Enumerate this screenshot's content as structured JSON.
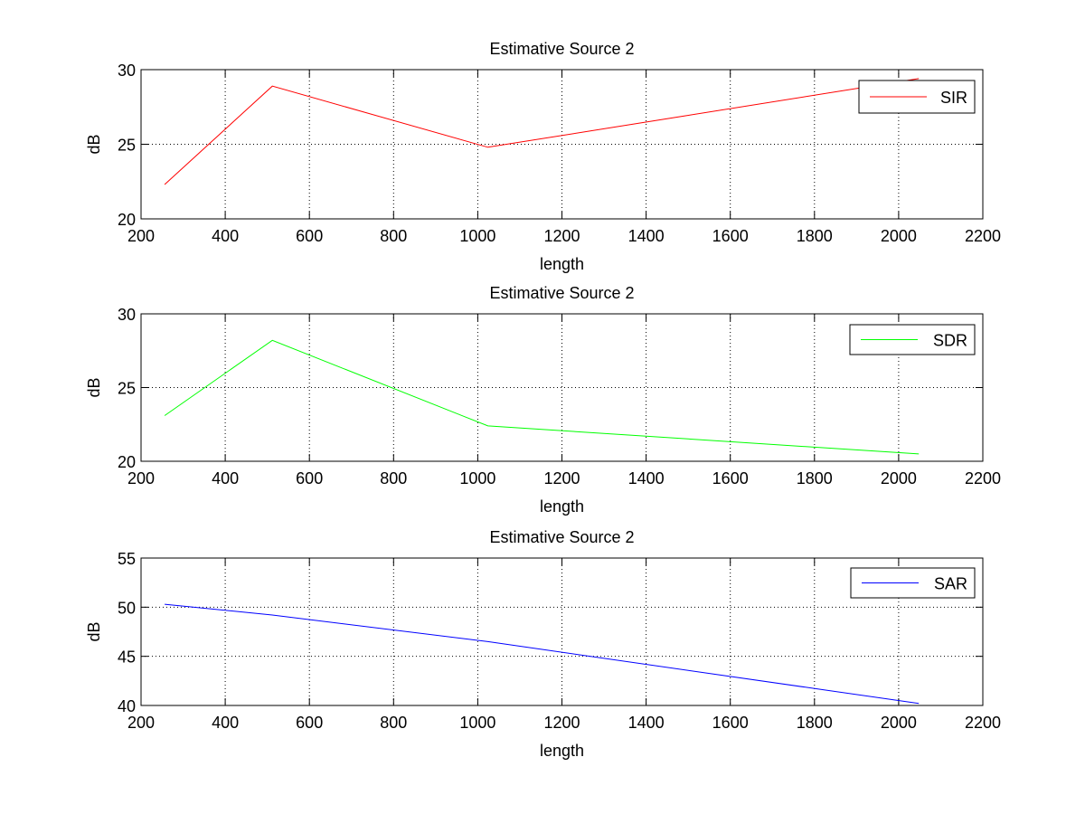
{
  "figure": {
    "background": "#ffffff"
  },
  "chart_data": [
    {
      "type": "line",
      "title": "Estimative Source 2",
      "xlabel": "length",
      "ylabel": "dB",
      "xlim": [
        200,
        2200
      ],
      "ylim": [
        20,
        30
      ],
      "xticks": [
        200,
        400,
        600,
        800,
        1000,
        1200,
        1400,
        1600,
        1800,
        2000,
        2200
      ],
      "yticks": [
        20,
        25,
        30
      ],
      "grid": true,
      "legend_position": "top-right",
      "series": [
        {
          "name": "SIR",
          "color": "#ff0000",
          "x": [
            256,
            512,
            1024,
            2048
          ],
          "y": [
            22.3,
            28.9,
            24.8,
            29.4
          ]
        }
      ]
    },
    {
      "type": "line",
      "title": "Estimative Source 2",
      "xlabel": "length",
      "ylabel": "dB",
      "xlim": [
        200,
        2200
      ],
      "ylim": [
        20,
        30
      ],
      "xticks": [
        200,
        400,
        600,
        800,
        1000,
        1200,
        1400,
        1600,
        1800,
        2000,
        2200
      ],
      "yticks": [
        20,
        25,
        30
      ],
      "grid": true,
      "legend_position": "top-right",
      "series": [
        {
          "name": "SDR",
          "color": "#00ff00",
          "x": [
            256,
            512,
            1024,
            2048
          ],
          "y": [
            23.1,
            28.2,
            22.4,
            20.5
          ]
        }
      ]
    },
    {
      "type": "line",
      "title": "Estimative Source 2",
      "xlabel": "length",
      "ylabel": "dB",
      "xlim": [
        200,
        2200
      ],
      "ylim": [
        40,
        55
      ],
      "xticks": [
        200,
        400,
        600,
        800,
        1000,
        1200,
        1400,
        1600,
        1800,
        2000,
        2200
      ],
      "yticks": [
        40,
        45,
        50,
        55
      ],
      "grid": true,
      "legend_position": "top-right",
      "series": [
        {
          "name": "SAR",
          "color": "#0000ff",
          "x": [
            256,
            512,
            1024,
            2048
          ],
          "y": [
            50.3,
            49.2,
            46.5,
            40.2
          ]
        }
      ]
    }
  ]
}
